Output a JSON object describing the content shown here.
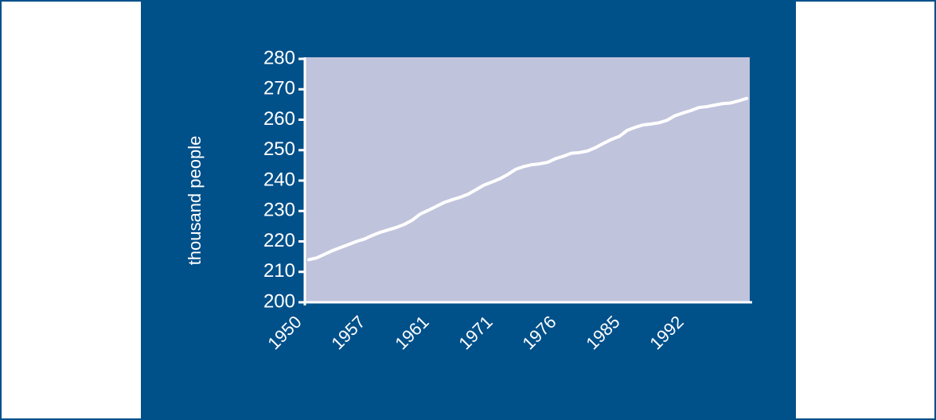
{
  "chart_data": {
    "type": "line",
    "y_label": "thousand people",
    "categories": [
      "1950",
      null,
      null,
      null,
      null,
      null,
      null,
      null,
      "1957",
      null,
      null,
      null,
      null,
      null,
      null,
      null,
      "1961",
      null,
      null,
      null,
      null,
      null,
      null,
      null,
      "1971",
      null,
      null,
      null,
      null,
      null,
      null,
      null,
      "1976",
      null,
      null,
      null,
      null,
      null,
      null,
      null,
      "1985",
      null,
      null,
      null,
      null,
      null,
      null,
      null,
      "1992",
      null,
      null,
      null,
      null,
      null,
      null,
      null
    ],
    "values": [
      214,
      214.6,
      215.8,
      217,
      218,
      219,
      220,
      220.8,
      222,
      223,
      223.8,
      224.6,
      225.6,
      227,
      229,
      230.2,
      231.5,
      232.8,
      233.7,
      234.5,
      235.5,
      237,
      238.5,
      239.5,
      240.6,
      242,
      243.7,
      244.6,
      245.2,
      245.5,
      246,
      247.2,
      248,
      249,
      249.2,
      249.7,
      250.8,
      252.2,
      253.5,
      254.5,
      256.5,
      257.5,
      258.3,
      258.6,
      259,
      259.8,
      261.3,
      262.2,
      263,
      264,
      264.3,
      264.8,
      265.3,
      265.5,
      266.2,
      267
    ],
    "color": "#ffffff",
    "ylim": [
      200,
      280
    ],
    "yticks": [
      200,
      210,
      220,
      230,
      240,
      250,
      260,
      270,
      280
    ]
  }
}
